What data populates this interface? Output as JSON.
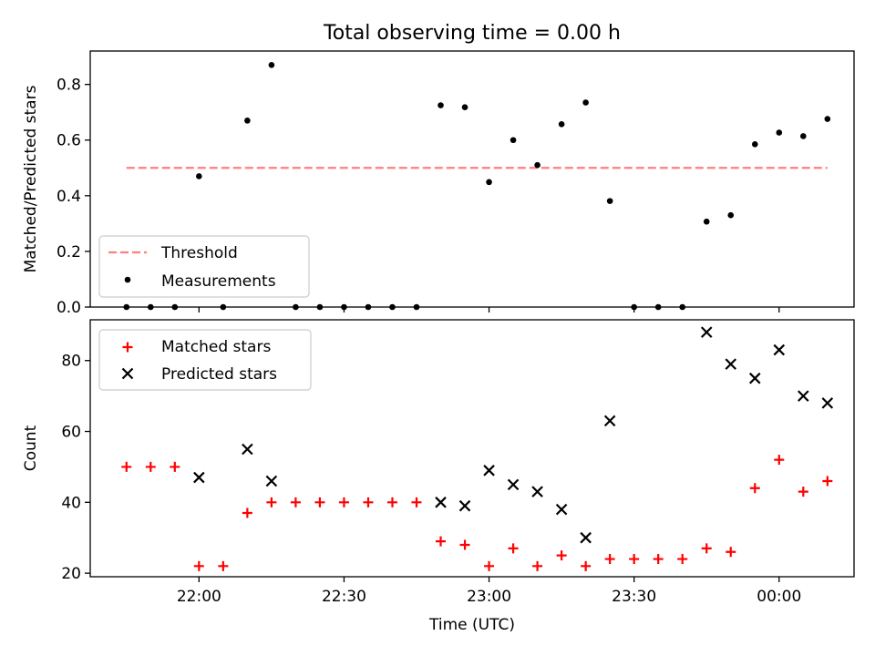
{
  "figure": {
    "title": "Total observing time = 0.00 h",
    "xlabel": "Time (UTC)"
  },
  "colors": {
    "threshold": "#ff7f7f",
    "measurements": "#000000",
    "matched": "#ff0000",
    "predicted": "#000000",
    "axes": "#000000"
  },
  "chart_data": [
    {
      "type": "scatter",
      "ylabel": "Matched/Predicted stars",
      "ylim": [
        0.0,
        0.92
      ],
      "yticks": [
        "0.0",
        "0.2",
        "0.4",
        "0.6",
        "0.8"
      ],
      "ytick_values": [
        0.0,
        0.2,
        0.4,
        0.6,
        0.8
      ],
      "legend_position": "lower-left",
      "series": [
        {
          "name": "Threshold",
          "kind": "dashed-line",
          "x": [
            "21:45",
            "24:10"
          ],
          "values": [
            0.5,
            0.5
          ]
        },
        {
          "name": "Measurements",
          "kind": "dot",
          "x": [
            "21:45",
            "21:50",
            "21:55",
            "22:00",
            "22:05",
            "22:10",
            "22:15",
            "22:20",
            "22:25",
            "22:30",
            "22:35",
            "22:40",
            "22:45",
            "22:50",
            "22:55",
            "23:00",
            "23:05",
            "23:10",
            "23:15",
            "23:20",
            "23:25",
            "23:30",
            "23:35",
            "23:40",
            "23:45",
            "23:50",
            "23:55",
            "24:00",
            "24:05",
            "24:10"
          ],
          "values": [
            0.0,
            0.0,
            0.0,
            0.47,
            0.0,
            0.67,
            0.87,
            0.0,
            0.0,
            0.0,
            0.0,
            0.0,
            0.0,
            0.725,
            0.718,
            0.449,
            0.6,
            0.51,
            0.657,
            0.735,
            0.381,
            0.0,
            0.0,
            0.0,
            0.307,
            0.33,
            0.585,
            0.627,
            0.614,
            0.676
          ]
        }
      ]
    },
    {
      "type": "scatter",
      "ylabel": "Count",
      "ylim": [
        19,
        91.5
      ],
      "yticks": [
        "20",
        "40",
        "60",
        "80"
      ],
      "ytick_values": [
        20,
        40,
        60,
        80
      ],
      "xticks": [
        "22:00",
        "22:30",
        "23:00",
        "23:30",
        "00:00"
      ],
      "xtick_values": [
        "22:00",
        "22:30",
        "23:00",
        "23:30",
        "24:00"
      ],
      "xlim": [
        "21:37.5",
        "24:15.5"
      ],
      "legend_position": "upper-left",
      "series": [
        {
          "name": "Matched stars",
          "marker": "+",
          "x": [
            "21:45",
            "21:50",
            "21:55",
            "22:00",
            "22:05",
            "22:10",
            "22:15",
            "22:20",
            "22:25",
            "22:30",
            "22:35",
            "22:40",
            "22:45",
            "22:50",
            "22:55",
            "23:00",
            "23:05",
            "23:10",
            "23:15",
            "23:20",
            "23:25",
            "23:30",
            "23:35",
            "23:40",
            "23:45",
            "23:50",
            "23:55",
            "24:00",
            "24:05",
            "24:10"
          ],
          "values": [
            50,
            50,
            50,
            22,
            22,
            37,
            40,
            40,
            40,
            40,
            40,
            40,
            40,
            29,
            28,
            22,
            27,
            22,
            25,
            22,
            24,
            24,
            24,
            24,
            27,
            26,
            44,
            52,
            43,
            46
          ]
        },
        {
          "name": "Predicted stars",
          "marker": "x",
          "x": [
            "22:00",
            "22:10",
            "22:15",
            "22:50",
            "22:55",
            "23:00",
            "23:05",
            "23:10",
            "23:15",
            "23:20",
            "23:25",
            "23:45",
            "23:50",
            "23:55",
            "24:00",
            "24:05",
            "24:10"
          ],
          "values": [
            47,
            55,
            46,
            40,
            39,
            49,
            45,
            43,
            38,
            30,
            63,
            88,
            79,
            75,
            83,
            70,
            68
          ]
        }
      ]
    }
  ]
}
